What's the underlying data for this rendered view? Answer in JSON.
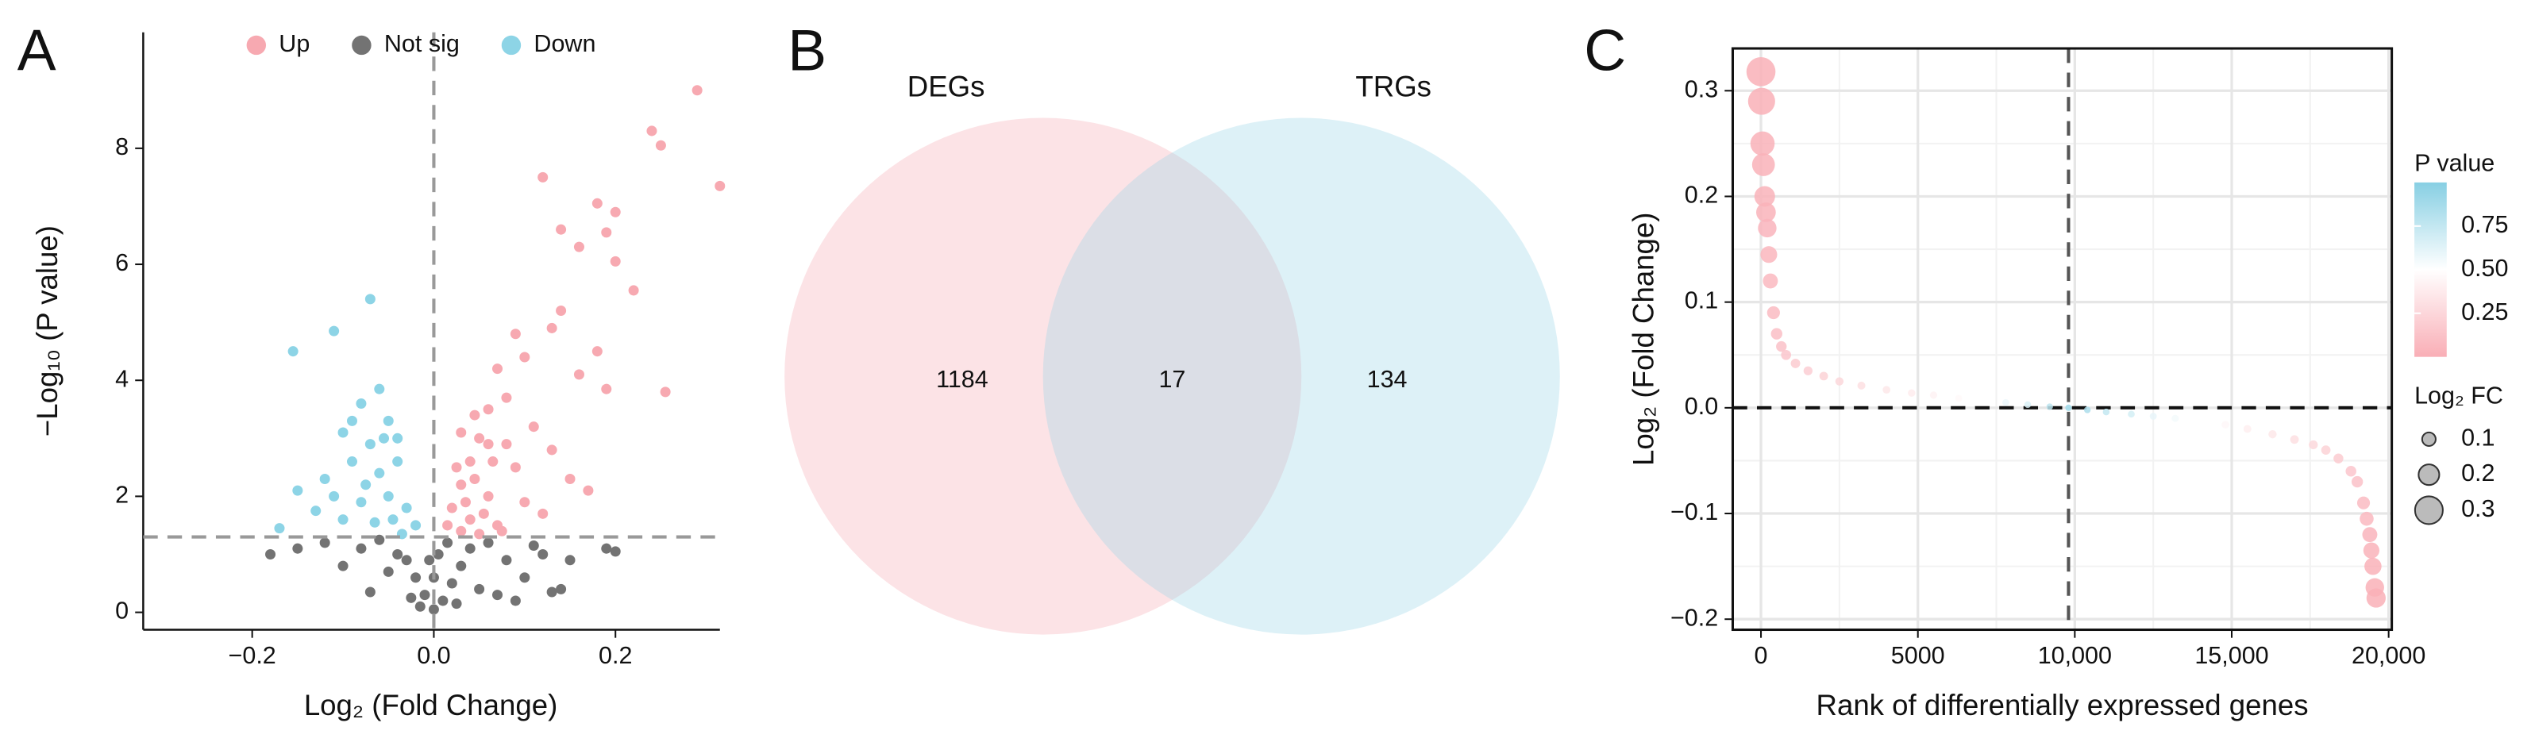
{
  "chart_data": [
    {
      "type": "scatter",
      "panel_label": "A",
      "x_label": "Log₂ (Fold Change)",
      "y_label": "−Log₁₀ (P value)",
      "xlim": [
        -0.32,
        0.315
      ],
      "ylim": [
        -0.3,
        10
      ],
      "xticks": [
        {
          "value": -0.2,
          "label": "−0.2"
        },
        {
          "value": 0,
          "label": "0.0"
        },
        0.2
      ],
      "yticks": [
        0,
        2,
        4,
        6,
        8
      ],
      "hline": 1.3,
      "vline": 0,
      "legend": "top",
      "series": [
        {
          "name": "Up",
          "color": "#f7a9b1",
          "x": [
            0.29,
            0.315,
            0.24,
            0.25,
            0.12,
            0.18,
            0.19,
            0.14,
            0.2,
            0.16,
            0.2,
            0.22,
            0.14,
            0.13,
            0.18,
            0.09,
            0.1,
            0.16,
            0.255,
            0.19,
            0.07,
            0.06,
            0.08,
            0.11,
            0.13,
            0.05,
            0.04,
            0.09,
            0.15,
            0.03,
            0.06,
            0.1,
            0.02,
            0.04,
            0.07,
            0.12,
            0.03,
            0.05,
            0.08,
            0.17,
            0.025,
            0.035,
            0.045,
            0.055,
            0.065,
            0.075,
            0.015,
            0.03,
            0.045,
            0.06
          ],
          "values": [
            9.0,
            7.35,
            8.3,
            8.05,
            7.5,
            7.05,
            6.55,
            6.6,
            6.9,
            6.3,
            6.05,
            5.55,
            5.2,
            4.9,
            4.5,
            4.8,
            4.4,
            4.1,
            3.8,
            3.85,
            4.2,
            3.5,
            3.7,
            3.2,
            2.8,
            3.0,
            2.6,
            2.5,
            2.3,
            2.2,
            2.0,
            1.9,
            1.8,
            1.6,
            1.5,
            1.7,
            1.4,
            1.35,
            2.9,
            2.1,
            2.5,
            1.9,
            2.3,
            1.7,
            2.6,
            1.4,
            1.5,
            3.1,
            3.4,
            2.9
          ]
        },
        {
          "name": "Not sig",
          "color": "#737373",
          "x": [
            0.0,
            0.01,
            -0.01,
            0.02,
            -0.02,
            0.03,
            -0.03,
            0.04,
            -0.04,
            0.05,
            -0.05,
            0.06,
            -0.06,
            0.08,
            -0.08,
            0.1,
            -0.1,
            0.12,
            -0.12,
            0.14,
            -0.15,
            0.19,
            0.2,
            -0.18,
            0.15,
            0.0,
            0.005,
            -0.005,
            0.015,
            -0.015,
            0.025,
            -0.025,
            0.07,
            -0.07,
            0.09,
            0.13,
            0.11
          ],
          "values": [
            0.05,
            0.2,
            0.3,
            0.5,
            0.6,
            0.8,
            0.9,
            1.1,
            1.0,
            0.4,
            0.7,
            1.2,
            1.25,
            0.9,
            1.1,
            0.6,
            0.8,
            1.0,
            1.2,
            0.4,
            1.1,
            1.1,
            1.05,
            1.0,
            0.9,
            0.6,
            1.0,
            0.9,
            1.2,
            0.1,
            0.15,
            0.25,
            0.3,
            0.35,
            0.2,
            0.35,
            1.15
          ]
        },
        {
          "name": "Down",
          "color": "#8dd4e6",
          "x": [
            -0.155,
            -0.11,
            -0.07,
            -0.06,
            -0.08,
            -0.05,
            -0.1,
            -0.04,
            -0.12,
            -0.15,
            -0.13,
            -0.17,
            -0.09,
            -0.07,
            -0.06,
            -0.05,
            -0.03,
            -0.08,
            -0.1,
            -0.04,
            -0.02,
            -0.035,
            -0.065,
            -0.055,
            -0.09,
            -0.11,
            -0.075,
            -0.045
          ],
          "values": [
            4.5,
            4.85,
            5.4,
            3.85,
            3.6,
            3.3,
            3.1,
            3.0,
            2.3,
            2.1,
            1.75,
            1.45,
            2.6,
            2.9,
            2.4,
            2.0,
            1.8,
            1.9,
            1.6,
            2.6,
            1.5,
            1.35,
            1.55,
            3.0,
            3.3,
            2.0,
            2.2,
            1.6
          ]
        }
      ]
    },
    {
      "type": "venn",
      "panel_label": "B",
      "sets": [
        {
          "name": "DEGs",
          "color": "#f7a9b1"
        },
        {
          "name": "TRGs",
          "color": "#94d3e7"
        }
      ],
      "region_counts": [
        1184,
        17,
        134
      ]
    },
    {
      "type": "bubble",
      "panel_label": "C",
      "x_label": "Rank of differentially expressed genes",
      "y_label": "Log₂ (Fold Change)",
      "xlim": [
        -900,
        20100
      ],
      "ylim": [
        -0.21,
        0.34
      ],
      "xticks": [
        0,
        5000,
        {
          "value": 10000,
          "label": "10,000"
        },
        {
          "value": 15000,
          "label": "15,000"
        },
        {
          "value": 20000,
          "label": "20,000"
        }
      ],
      "yticks": [
        {
          "value": -0.2,
          "label": "−0.2"
        },
        {
          "value": -0.1,
          "label": "−0.1"
        },
        {
          "value": 0,
          "label": "0.0"
        },
        0.1,
        0.2,
        0.3
      ],
      "grid": true,
      "hline": 0,
      "vline": 9800,
      "color_title": "P value",
      "color_lim": [
        0,
        1
      ],
      "color_ticks": [
        0.25,
        {
          "value": 0.5,
          "label": "0.50"
        },
        0.75
      ],
      "color_scale": {
        "low": "#f9aeb6",
        "mid": "#ffffff",
        "high": "#87cfe3"
      },
      "size_title": "Log₂ FC",
      "size_legend": [
        0.1,
        0.2,
        0.3
      ],
      "series": [
        {
          "x": [
            0,
            20,
            50,
            80,
            120,
            160,
            200,
            250,
            300,
            400,
            500,
            650,
            800,
            1100,
            1500,
            2000,
            2500,
            3200,
            4000,
            4800,
            5500,
            6300,
            7000,
            7800,
            8500,
            9200,
            9800,
            10400,
            11000,
            11800,
            12500,
            13200,
            14000,
            14800,
            15500,
            16300,
            17000,
            17600,
            18000,
            18400,
            18800,
            19000,
            19200,
            19300,
            19400,
            19450,
            19500,
            19560,
            19600
          ],
          "values": [
            0.318,
            0.29,
            0.25,
            0.23,
            0.2,
            0.185,
            0.17,
            0.145,
            0.12,
            0.09,
            0.07,
            0.058,
            0.05,
            0.042,
            0.035,
            0.03,
            0.025,
            0.021,
            0.017,
            0.014,
            0.012,
            0.009,
            0.007,
            0.005,
            0.003,
            0.001,
            0.0,
            -0.002,
            -0.004,
            -0.006,
            -0.008,
            -0.01,
            -0.013,
            -0.016,
            -0.02,
            -0.025,
            -0.03,
            -0.035,
            -0.04,
            -0.048,
            -0.06,
            -0.07,
            -0.09,
            -0.105,
            -0.12,
            -0.135,
            -0.15,
            -0.17,
            -0.18
          ],
          "pvalues": [
            0.01,
            0.01,
            0.02,
            0.02,
            0.03,
            0.03,
            0.04,
            0.05,
            0.06,
            0.08,
            0.1,
            0.12,
            0.15,
            0.18,
            0.2,
            0.22,
            0.25,
            0.3,
            0.35,
            0.38,
            0.42,
            0.46,
            0.5,
            0.58,
            0.65,
            0.78,
            0.9,
            0.85,
            0.75,
            0.68,
            0.6,
            0.55,
            0.5,
            0.45,
            0.4,
            0.35,
            0.3,
            0.26,
            0.22,
            0.18,
            0.15,
            0.12,
            0.08,
            0.06,
            0.04,
            0.03,
            0.02,
            0.01,
            0.01
          ]
        }
      ]
    }
  ]
}
